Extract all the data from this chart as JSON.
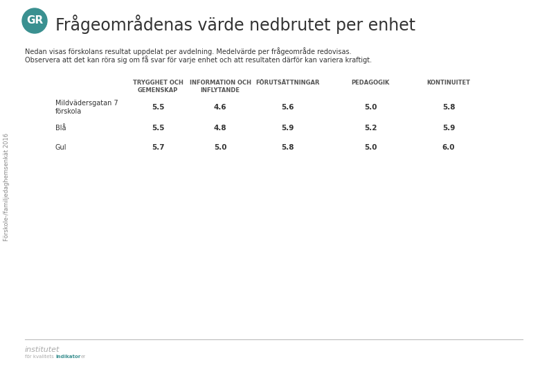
{
  "title": "Frågeområdenas värde nedbrutet per enhet",
  "subtitle_line1": "Nedan visas förskolans resultat uppdelat per avdelning. Medelvärde per frågeområde redovisas.",
  "subtitle_line2": "Observera att det kan röra sig om få svar för varje enhet och att resultaten därför kan variera kraftigt.",
  "sidebar_text": "Förskole-/familjedaghemsenkät 2016",
  "col_headers": [
    "TRYGGHET OCH\nGEMENSKAP",
    "INFORMATION OCH\nINFLYTANDE",
    "FÖRUTSÄTTNINGAR",
    "PEDAGOGIK",
    "KONTINUITET"
  ],
  "rows": [
    {
      "label": "Mildvädersgatan 7\nförskola",
      "values": [
        "5.5",
        "4.6",
        "5.6",
        "5.0",
        "5.8"
      ]
    },
    {
      "label": "Blå",
      "values": [
        "5.5",
        "4.8",
        "5.9",
        "5.2",
        "5.9"
      ]
    },
    {
      "label": "Gul",
      "values": [
        "5.7",
        "5.0",
        "5.8",
        "5.0",
        "6.0"
      ]
    }
  ],
  "bg_color": "#ffffff",
  "text_color": "#333333",
  "header_color": "#555555",
  "teal_color": "#3a9090",
  "sidebar_color": "#888888",
  "footer_line_color": "#bbbbbb",
  "inst_text_color": "#aaaaaa",
  "inst_bold_color": "#3a9090"
}
